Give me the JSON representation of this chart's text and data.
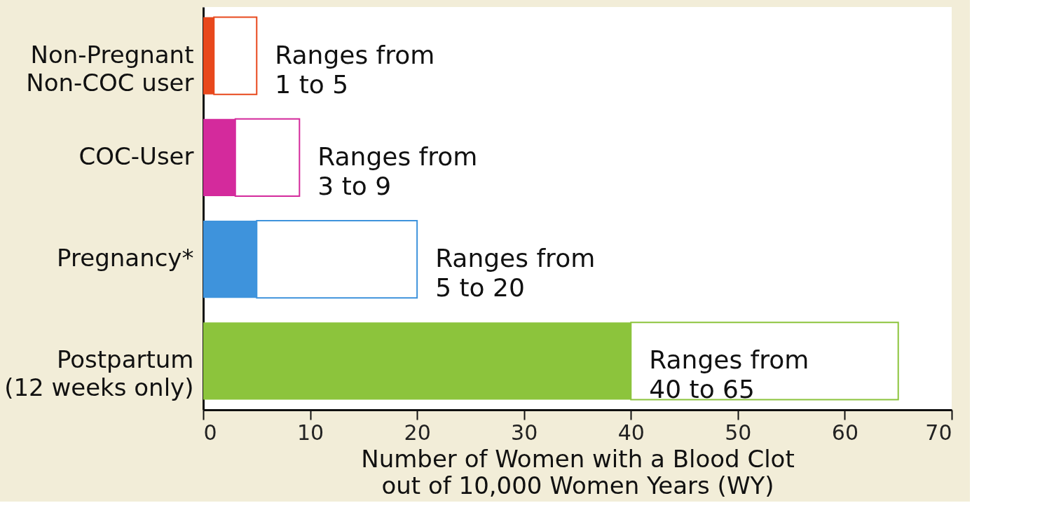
{
  "chart_data": {
    "type": "bar",
    "orientation": "horizontal",
    "stacked": true,
    "xlabel": "Number of Women with a Blood Clot\nout of 10,000 Women Years (WY)",
    "categories": [
      "Non-Pregnant\nNon-COC user",
      "COC-User",
      "Pregnancy*",
      "Postpartum\n(12 weeks only)"
    ],
    "series": [
      {
        "values": [
          1,
          3,
          5,
          40
        ],
        "colors": [
          "#e8481c",
          "#d42a9c",
          "#3e93dc",
          "#8cc43c"
        ]
      },
      {
        "values": [
          4,
          6,
          15,
          25
        ],
        "colors": [
          "#e8481c",
          "#d42a9c",
          "#3e93dc",
          "#8cc43c"
        ]
      }
    ],
    "xlim": [
      0,
      70
    ],
    "xticks": [
      0,
      10,
      20,
      30,
      40,
      50,
      60,
      70
    ],
    "grid": false,
    "annotations": [
      {
        "text": "Ranges from\n1 to 5",
        "x": 5,
        "y": "Non-Pregnant\nNon-COC user"
      },
      {
        "text": "Ranges from\n3 to 9",
        "x": 9,
        "y": "COC-User"
      },
      {
        "text": "Ranges from\n5 to 20",
        "x": 20,
        "y": "Pregnancy*"
      },
      {
        "text": "Ranges from\n40 to 65",
        "x": 40,
        "y": "Postpartum\n(12 weeks only)"
      }
    ]
  }
}
